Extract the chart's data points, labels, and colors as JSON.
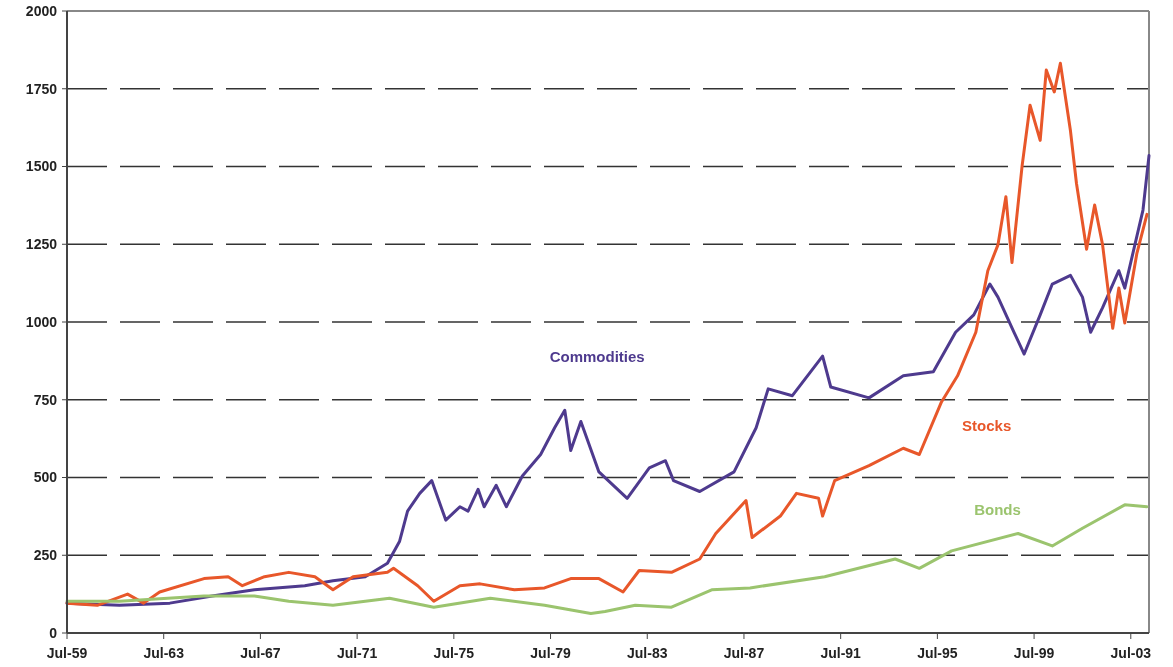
{
  "chart_data": {
    "type": "line",
    "xlim": [
      "1959-07",
      "2004-04"
    ],
    "xticks": [
      {
        "value": "1959-07",
        "label": "Jul-59"
      },
      {
        "value": "1963-07",
        "label": "Jul-63"
      },
      {
        "value": "1967-07",
        "label": "Jul-67"
      },
      {
        "value": "1971-07",
        "label": "Jul-71"
      },
      {
        "value": "1975-07",
        "label": "Jul-75"
      },
      {
        "value": "1979-07",
        "label": "Jul-79"
      },
      {
        "value": "1983-07",
        "label": "Jul-83"
      },
      {
        "value": "1987-07",
        "label": "Jul-87"
      },
      {
        "value": "1991-07",
        "label": "Jul-91"
      },
      {
        "value": "1995-07",
        "label": "Jul-95"
      },
      {
        "value": "1999-07",
        "label": "Jul-99"
      },
      {
        "value": "2003-07",
        "label": "Jul-03"
      }
    ],
    "ylim": [
      0,
      2000
    ],
    "yticks": [
      0,
      250,
      500,
      750,
      1000,
      1250,
      1500,
      1750,
      2000
    ],
    "grid": "y",
    "line_style": "solid",
    "marker": "none",
    "series": [
      {
        "name": "Commodities",
        "color": "#4e3a8e",
        "x": [
          "1959-07",
          "1961-09",
          "1963-10",
          "1965-07",
          "1967-04",
          "1969-05",
          "1970-07",
          "1971-11",
          "1972-10",
          "1973-04",
          "1973-08",
          "1974-02",
          "1974-08",
          "1975-03",
          "1975-10",
          "1976-02",
          "1976-07",
          "1976-10",
          "1977-04",
          "1977-09",
          "1978-05",
          "1979-02",
          "1979-09",
          "1980-02",
          "1980-05",
          "1980-10",
          "1981-07",
          "1982-09",
          "1983-08",
          "1984-04",
          "1984-08",
          "1985-09",
          "1987-02",
          "1988-01",
          "1988-07",
          "1989-07",
          "1990-10",
          "1991-02",
          "1992-09",
          "1994-02",
          "1995-05",
          "1996-04",
          "1997-01",
          "1997-09",
          "1998-01",
          "1998-09",
          "1999-02",
          "1999-10",
          "2000-04",
          "2001-01",
          "2001-07",
          "2001-11",
          "2002-05",
          "2003-01",
          "2003-04",
          "2004-01",
          "2004-04"
        ],
        "values": [
          96,
          89,
          96,
          119,
          139,
          152,
          168,
          181,
          224,
          294,
          392,
          449,
          490,
          363,
          406,
          392,
          462,
          406,
          475,
          406,
          505,
          574,
          660,
          716,
          587,
          680,
          518,
          433,
          531,
          554,
          490,
          455,
          518,
          660,
          785,
          763,
          890,
          791,
          756,
          827,
          840,
          967,
          1023,
          1122,
          1080,
          967,
          897,
          1023,
          1122,
          1150,
          1080,
          967,
          1046,
          1165,
          1109,
          1360,
          1535
        ]
      },
      {
        "name": "Stocks",
        "color": "#e8572a",
        "x": [
          "1959-07",
          "1960-10",
          "1962-01",
          "1962-09",
          "1963-05",
          "1965-03",
          "1966-03",
          "1966-10",
          "1967-09",
          "1968-09",
          "1969-10",
          "1970-07",
          "1971-05",
          "1972-10",
          "1973-01",
          "1974-01",
          "1974-09",
          "1975-10",
          "1976-08",
          "1978-01",
          "1979-04",
          "1980-05",
          "1981-07",
          "1982-07",
          "1983-03",
          "1984-07",
          "1985-09",
          "1986-05",
          "1987-08",
          "1987-11",
          "1989-01",
          "1989-09",
          "1990-08",
          "1990-10",
          "1991-04",
          "1992-09",
          "1994-02",
          "1994-10",
          "1995-09",
          "1996-05",
          "1997-02",
          "1997-08",
          "1998-01",
          "1998-05",
          "1998-08",
          "1999-01",
          "1999-05",
          "1999-10",
          "2000-01",
          "2000-05",
          "2000-08",
          "2001-01",
          "2001-04",
          "2001-09",
          "2002-01",
          "2002-05",
          "2002-10",
          "2003-01",
          "2003-04",
          "2003-10",
          "2004-03"
        ],
        "values": [
          96,
          89,
          125,
          96,
          132,
          175,
          181,
          152,
          181,
          195,
          181,
          139,
          181,
          195,
          208,
          152,
          102,
          152,
          158,
          139,
          145,
          175,
          175,
          132,
          201,
          195,
          238,
          320,
          426,
          307,
          376,
          449,
          433,
          376,
          490,
          538,
          594,
          574,
          743,
          827,
          967,
          1165,
          1248,
          1403,
          1191,
          1502,
          1697,
          1584,
          1810,
          1740,
          1832,
          1614,
          1446,
          1234,
          1376,
          1248,
          980,
          1109,
          997,
          1221,
          1346
        ]
      },
      {
        "name": "Bonds",
        "color": "#9bc46e",
        "x": [
          "1959-07",
          "1961-09",
          "1965-03",
          "1967-04",
          "1968-09",
          "1970-07",
          "1972-11",
          "1974-09",
          "1977-01",
          "1979-04",
          "1981-03",
          "1981-10",
          "1983-01",
          "1984-07",
          "1986-03",
          "1987-10",
          "1990-11",
          "1993-10",
          "1994-10",
          "1996-02",
          "1998-11",
          "2000-04",
          "2001-07",
          "2003-04",
          "2004-03"
        ],
        "values": [
          102,
          102,
          119,
          119,
          102,
          89,
          112,
          83,
          112,
          89,
          63,
          69,
          89,
          83,
          139,
          145,
          181,
          238,
          208,
          264,
          320,
          280,
          337,
          412,
          406
        ]
      }
    ]
  }
}
